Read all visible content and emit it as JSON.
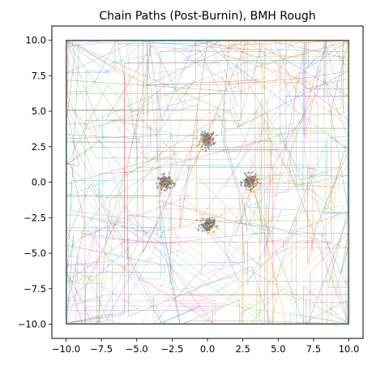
{
  "chart_data": {
    "type": "line",
    "title": "Chain Paths (Post-Burnin), BMH Rough",
    "xlabel": "",
    "ylabel": "",
    "xlim": [
      -11.0,
      11.0
    ],
    "ylim": [
      -11.0,
      11.0
    ],
    "xticks": [
      -10.0,
      -7.5,
      -5.0,
      -2.5,
      0.0,
      2.5,
      5.0,
      7.5,
      10.0
    ],
    "yticks": [
      -10.0,
      -7.5,
      -5.0,
      -2.5,
      0.0,
      2.5,
      5.0,
      7.5,
      10.0
    ],
    "xtick_labels": [
      "−10.0",
      "−7.5",
      "−5.0",
      "−2.5",
      "0.0",
      "2.5",
      "5.0",
      "7.5",
      "10.0"
    ],
    "ytick_labels": [
      "−10.0",
      "−7.5",
      "−5.0",
      "−2.5",
      "0.0",
      "2.5",
      "5.0",
      "7.5",
      "10.0"
    ],
    "domain_box": {
      "x": [
        -10,
        10
      ],
      "y": [
        -10,
        10
      ]
    },
    "grid": false,
    "legend": "none",
    "modes": [
      {
        "x": 0.0,
        "y": 3.0
      },
      {
        "x": -3.0,
        "y": 0.0
      },
      {
        "x": 3.0,
        "y": 0.0
      },
      {
        "x": 0.0,
        "y": -3.0
      }
    ],
    "series_colors": [
      "#1f77b4",
      "#ff7f0e",
      "#2ca02c",
      "#d62728",
      "#9467bd",
      "#8c564b",
      "#e377c2",
      "#7f7f7f",
      "#bcbd22",
      "#17becf"
    ]
  }
}
